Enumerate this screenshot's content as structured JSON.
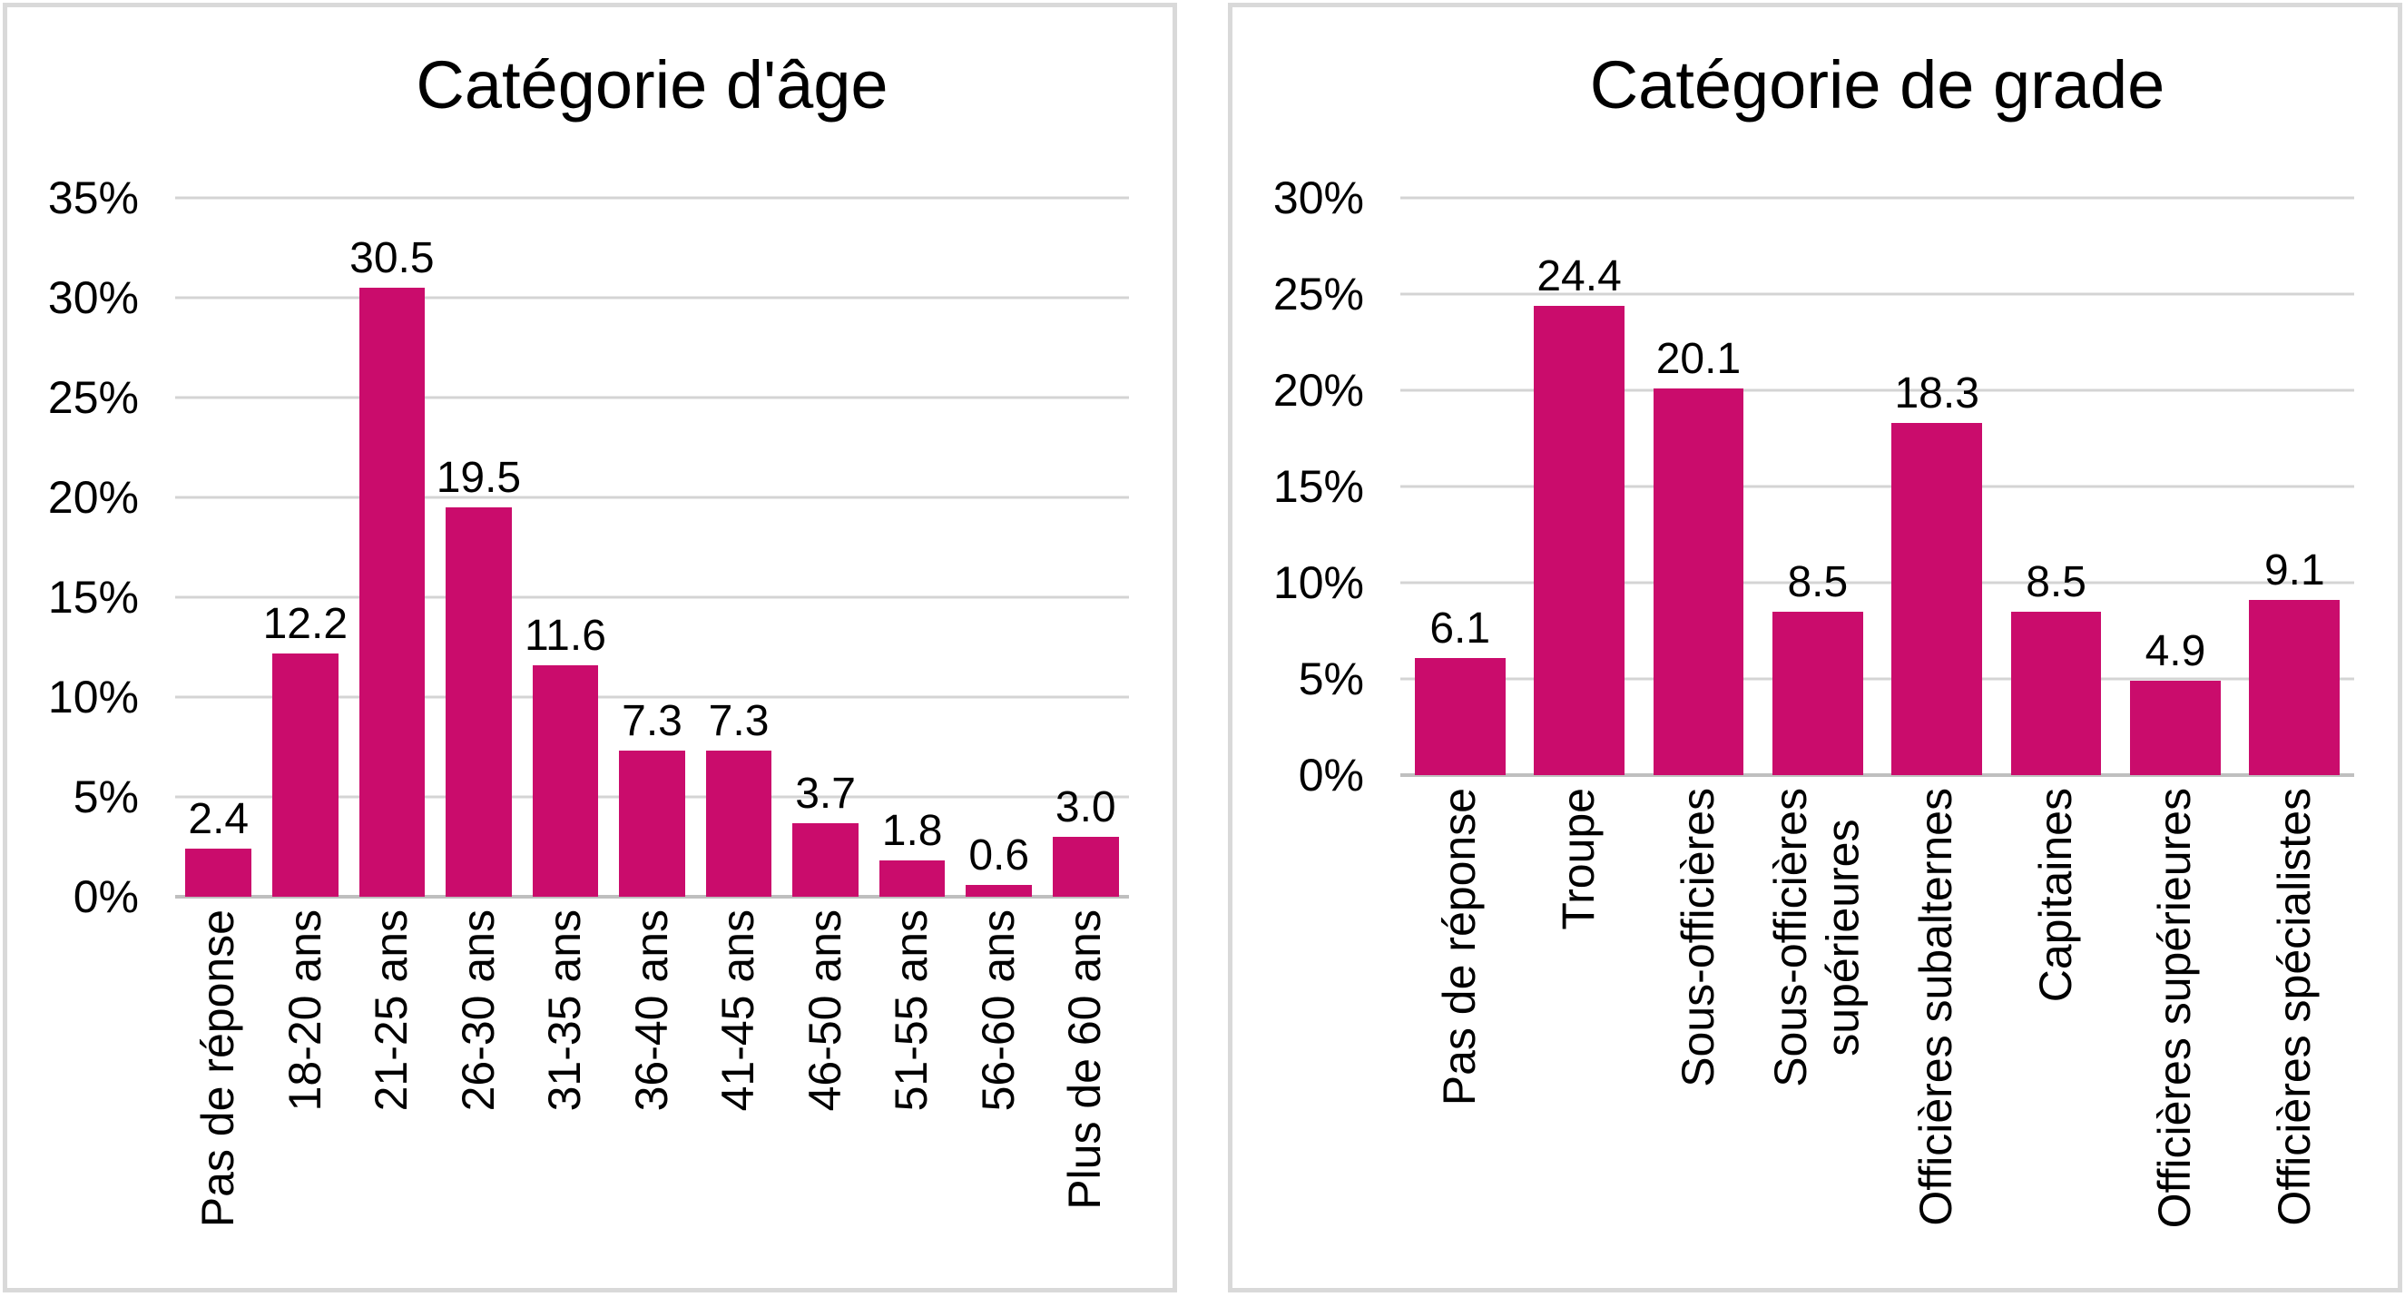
{
  "page": {
    "background_color": "#ffffff",
    "card_border_color": "#d9d9d9",
    "gridline_color": "#d4d4d4",
    "axis_line_color": "#bfbfbf",
    "text_color": "#000000"
  },
  "chart_data": [
    {
      "type": "bar",
      "title": "Catégorie d'âge",
      "categories": [
        "Pas de réponse",
        "18-20 ans",
        "21-25 ans",
        "26-30 ans",
        "31-35 ans",
        "36-40 ans",
        "41-45 ans",
        "46-50 ans",
        "51-55 ans",
        "56-60 ans",
        "Plus de 60 ans"
      ],
      "values": [
        2.4,
        12.2,
        30.5,
        19.5,
        11.6,
        7.3,
        7.3,
        3.7,
        1.8,
        0.6,
        3.0
      ],
      "xlabel": "",
      "ylabel": "",
      "ylim": [
        0,
        35
      ],
      "ytick_step": 5,
      "ytick_suffix": "%",
      "data_label_decimals": 1,
      "grid": true,
      "legend": "none",
      "bar_color": "#ca0c6c",
      "x_tick_rotation_deg": 90
    },
    {
      "type": "bar",
      "title": "Catégorie de grade",
      "categories": [
        "Pas de réponse",
        "Troupe",
        "Sous-officières",
        "Sous-officières\nsupérieures",
        "Officières subalternes",
        "Capitaines",
        "Officières supérieures",
        "Officières spécialistes"
      ],
      "values": [
        6.1,
        24.4,
        20.1,
        8.5,
        18.3,
        8.5,
        4.9,
        9.1
      ],
      "xlabel": "",
      "ylabel": "",
      "ylim": [
        0,
        30
      ],
      "ytick_step": 5,
      "ytick_suffix": "%",
      "data_label_decimals": 1,
      "grid": true,
      "legend": "none",
      "bar_color": "#ca0c6c",
      "x_tick_rotation_deg": 90
    }
  ]
}
